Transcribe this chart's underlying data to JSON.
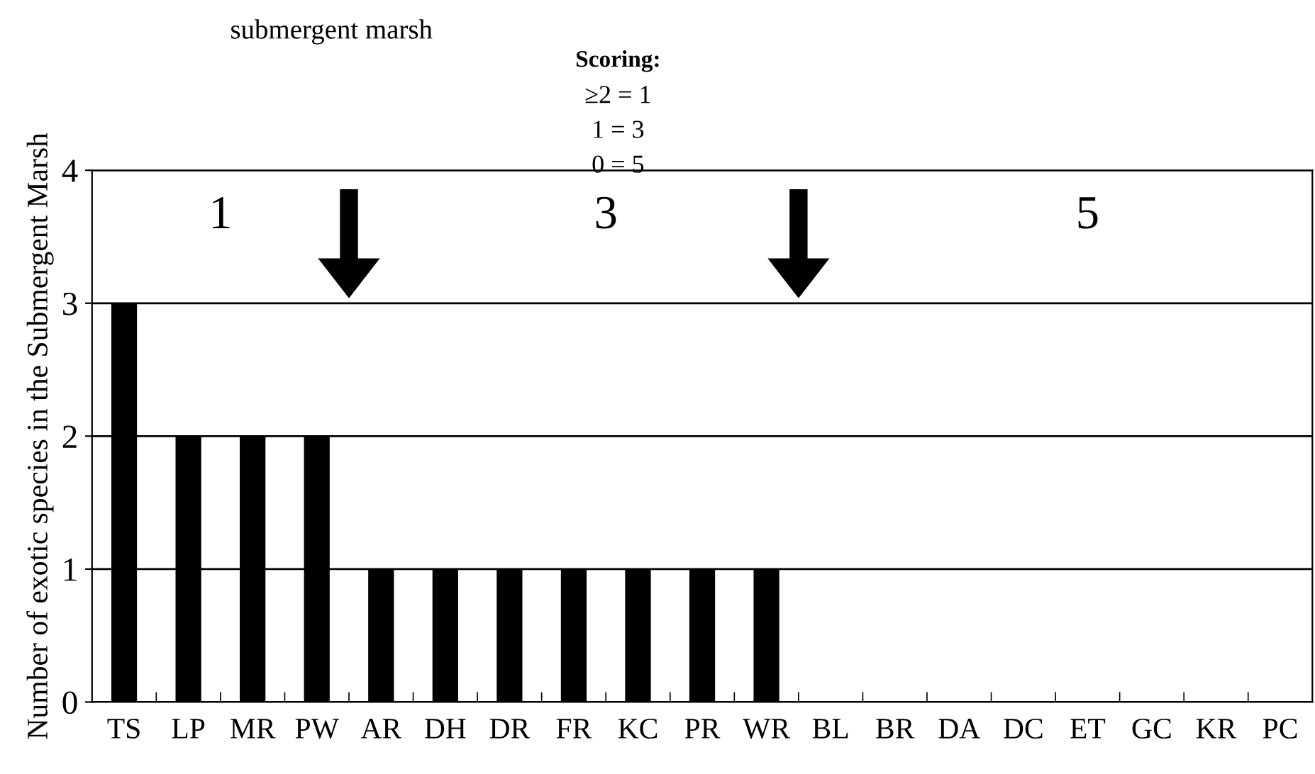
{
  "chart_data": {
    "type": "bar",
    "title": "submergent marsh",
    "ylabel": "Number of exotic species in the Submergent Marsh",
    "categories": [
      "TS",
      "LP",
      "MR",
      "PW",
      "AR",
      "DH",
      "DR",
      "FR",
      "KC",
      "PR",
      "WR",
      "BL",
      "BR",
      "DA",
      "DC",
      "ET",
      "GC",
      "KR",
      "PC"
    ],
    "values": [
      3,
      2,
      2,
      2,
      1,
      1,
      1,
      1,
      1,
      1,
      1,
      0,
      0,
      0,
      0,
      0,
      0,
      0,
      0
    ],
    "color": "#000000",
    "ylim": [
      0,
      4
    ],
    "yticks": [
      0,
      1,
      2,
      3,
      4
    ],
    "grid": "y",
    "annotations": [
      "Scoring:",
      "≥2 = 1",
      "1 = 3",
      "0 = 5",
      "1",
      "3",
      "5"
    ]
  }
}
